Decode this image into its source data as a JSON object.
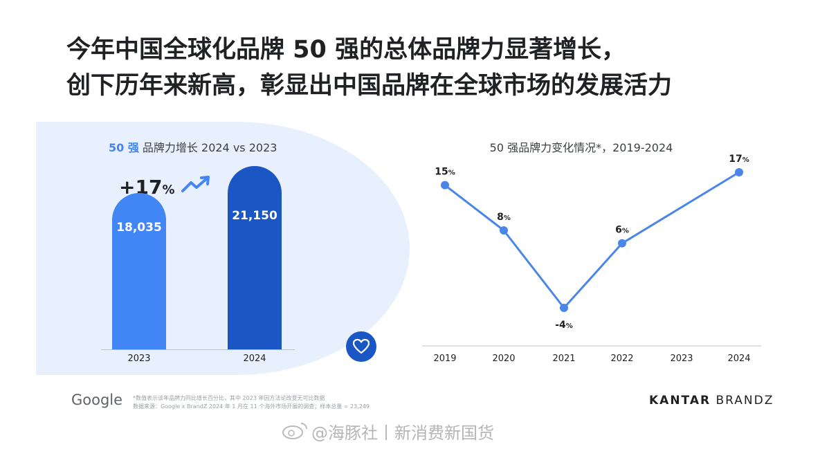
{
  "headline": {
    "line1": "今年中国全球化品牌 50 强的总体品牌力显著增长，",
    "line2": "创下历年来新高，彰显出中国品牌在全球市场的发展活力"
  },
  "left_panel": {
    "title_accent": "50 强",
    "title_rest": " 品牌力增长 2024 vs 2023",
    "growth_value": "+17",
    "growth_unit": "%",
    "trend_icon": "trending-up-icon",
    "heart_icon": "heart-icon"
  },
  "footer": {
    "google": "Google",
    "note_line1": "*数值表示该年品牌力同比增长百分比，其中 2023 年因方法论改变无可比数据",
    "note_line2": "数据来源：Google x BrandZ 2024 年 1 月在 11 个海外市场开展的调查；样本总量 = 23,249",
    "kantar_bold": "KANTAR",
    "kantar_light": "BRANDZ",
    "watermark": "@海豚社丨新消费新国货"
  },
  "colors": {
    "bar_2023": "#4285f4",
    "bar_2024": "#1a56c4",
    "line": "#4a86e8",
    "panel_bg": "#e8f0fe"
  },
  "chart_data": [
    {
      "type": "bar",
      "title": "50 强 品牌力增长 2024 vs 2023",
      "categories": [
        "2023",
        "2024"
      ],
      "values": [
        18035,
        21150
      ],
      "value_labels": [
        "18,035",
        "21,150"
      ],
      "annotation": "+17%"
    },
    {
      "type": "line",
      "title": "50 强品牌力变化情况*，2019-2024",
      "x": [
        "2019",
        "2020",
        "2021",
        "2022",
        "2023",
        "2024"
      ],
      "series": [
        {
          "values": [
            15,
            8,
            -4,
            6,
            null,
            17
          ],
          "labels": [
            "15%",
            "8%",
            "-4%",
            "6%",
            "",
            "17%"
          ]
        }
      ],
      "grid": false
    }
  ]
}
